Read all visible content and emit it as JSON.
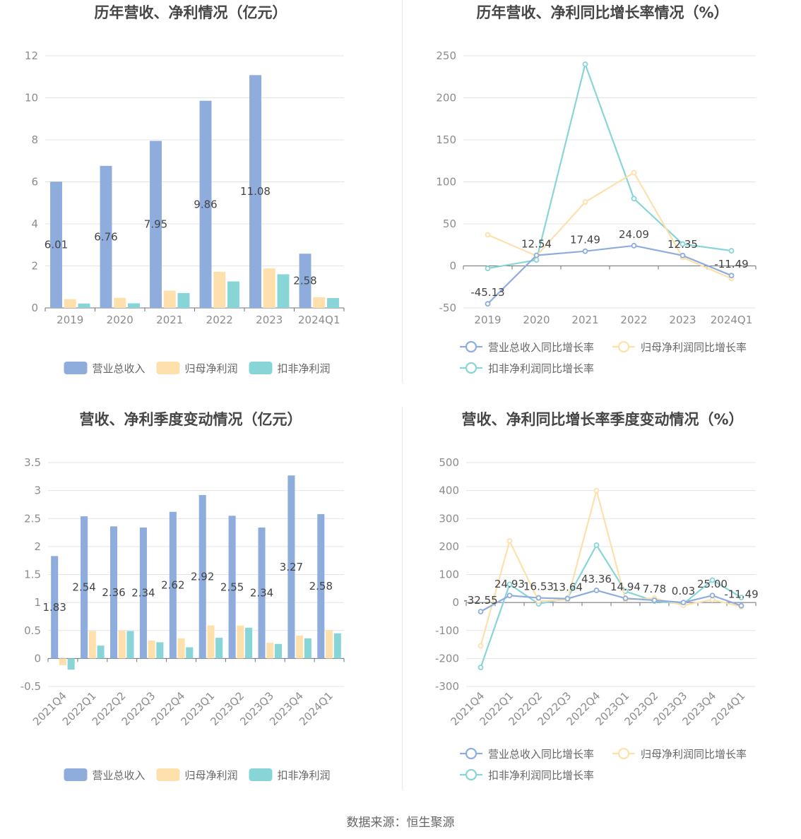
{
  "colors": {
    "revenue": "#8eacdc",
    "parent_profit": "#fde0ac",
    "deducted_profit": "#88d5d8",
    "grid": "#e4e4e4",
    "axis": "#6e7079"
  },
  "legend": {
    "bar_items": [
      "营业总收入",
      "归母净利润",
      "扣非净利润"
    ],
    "line_items": [
      "营业总收入同比增长率",
      "归母净利润同比增长率",
      "扣非净利润同比增长率"
    ]
  },
  "source": "数据来源：恒生聚源",
  "chart_data": [
    {
      "type": "bar",
      "title": "历年营收、净利情况（亿元）",
      "categories": [
        "2019",
        "2020",
        "2021",
        "2022",
        "2023",
        "2024Q1"
      ],
      "series": [
        {
          "name": "营业总收入",
          "values": [
            6.01,
            6.76,
            7.95,
            9.86,
            11.08,
            2.58
          ]
        },
        {
          "name": "归母净利润",
          "values": [
            0.42,
            0.48,
            0.82,
            1.72,
            1.88,
            0.51
          ]
        },
        {
          "name": "扣非净利润",
          "values": [
            0.21,
            0.22,
            0.71,
            1.26,
            1.6,
            0.47
          ]
        }
      ],
      "ylim": [
        0,
        12
      ],
      "yticks": [
        0,
        2,
        4,
        6,
        8,
        10,
        12
      ],
      "data_labels": [
        "6.01",
        "6.76",
        "7.95",
        "9.86",
        "11.08",
        "2.58"
      ],
      "legend_position": "bottom"
    },
    {
      "type": "line",
      "title": "历年营收、净利同比增长率情况（%）",
      "categories": [
        "2019",
        "2020",
        "2021",
        "2022",
        "2023",
        "2024Q1"
      ],
      "series": [
        {
          "name": "营业总收入同比增长率",
          "values": [
            -45.13,
            12.54,
            17.49,
            24.09,
            12.35,
            -11.49
          ]
        },
        {
          "name": "归母净利润同比增长率",
          "values": [
            37,
            12,
            76,
            111,
            10,
            -15
          ]
        },
        {
          "name": "扣非净利润同比增长率",
          "values": [
            -3,
            7,
            240,
            80,
            26,
            18
          ]
        }
      ],
      "ylim": [
        -50,
        250
      ],
      "yticks": [
        -50,
        0,
        50,
        100,
        150,
        200,
        250
      ],
      "data_labels": [
        "-45.13",
        "12.54",
        "17.49",
        "24.09",
        "12.35",
        "-11.49"
      ],
      "legend_position": "bottom"
    },
    {
      "type": "bar",
      "title": "营收、净利季度变动情况（亿元）",
      "categories": [
        "2021Q4",
        "2022Q1",
        "2022Q2",
        "2022Q3",
        "2022Q4",
        "2023Q1",
        "2023Q2",
        "2023Q3",
        "2023Q4",
        "2024Q1"
      ],
      "series": [
        {
          "name": "营业总收入",
          "values": [
            1.83,
            2.54,
            2.36,
            2.34,
            2.62,
            2.92,
            2.55,
            2.34,
            3.27,
            2.58
          ]
        },
        {
          "name": "归母净利润",
          "values": [
            -0.12,
            0.49,
            0.5,
            0.32,
            0.36,
            0.59,
            0.59,
            0.28,
            0.41,
            0.51
          ]
        },
        {
          "name": "扣非净利润",
          "values": [
            -0.2,
            0.23,
            0.49,
            0.29,
            0.2,
            0.37,
            0.55,
            0.26,
            0.36,
            0.45
          ]
        }
      ],
      "ylim": [
        -0.5,
        3.5
      ],
      "yticks": [
        -0.5,
        0,
        0.5,
        1,
        1.5,
        2,
        2.5,
        3,
        3.5
      ],
      "ytick_labels": [
        "-0.5",
        "0",
        "0.5",
        "1",
        "1.5",
        "2",
        "2.5",
        "3",
        "3.5"
      ],
      "data_labels": [
        "1.83",
        "2.54",
        "2.36",
        "2.34",
        "2.62",
        "2.92",
        "2.55",
        "2.34",
        "3.27",
        "2.58"
      ],
      "legend_position": "bottom"
    },
    {
      "type": "line",
      "title": "营收、净利同比增长率季度变动情况（%）",
      "categories": [
        "2021Q4",
        "2022Q1",
        "2022Q2",
        "2022Q3",
        "2022Q4",
        "2023Q1",
        "2023Q2",
        "2023Q3",
        "2023Q4",
        "2024Q1"
      ],
      "series": [
        {
          "name": "营业总收入同比增长率",
          "values": [
            -32.55,
            24.93,
            16.53,
            13.64,
            43.36,
            14.94,
            7.78,
            0.03,
            25.0,
            -11.49
          ]
        },
        {
          "name": "归母净利润同比增长率",
          "values": [
            -155,
            220,
            5,
            10,
            400,
            10,
            15,
            -10,
            10,
            -15
          ]
        },
        {
          "name": "扣非净利润同比增长率",
          "values": [
            -232,
            65,
            -5,
            15,
            205,
            40,
            5,
            -5,
            80,
            18
          ]
        }
      ],
      "ylim": [
        -300,
        500
      ],
      "yticks": [
        -300,
        -200,
        -100,
        0,
        100,
        200,
        300,
        400,
        500
      ],
      "data_labels": [
        "-32.55",
        "24.93",
        "16.53",
        "13.64",
        "43.36",
        "14.94",
        "7.78",
        "0.03",
        "25.00",
        "-11.49"
      ],
      "legend_position": "bottom"
    }
  ]
}
